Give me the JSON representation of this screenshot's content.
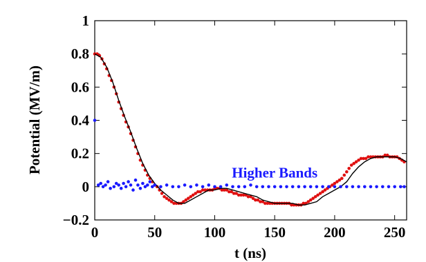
{
  "chart_data": {
    "type": "scatter",
    "xlabel": "t (ns)",
    "ylabel": "Potential (MV/m)",
    "xlim": [
      0,
      260
    ],
    "ylim": [
      -0.2,
      1.0
    ],
    "xticks": [
      0,
      50,
      100,
      150,
      200,
      250
    ],
    "yticks": [
      -0.2,
      0,
      0.2,
      0.4,
      0.6,
      0.8,
      1
    ],
    "ytick_labels": [
      "−0.2",
      "0",
      "0.2",
      "0.4",
      "0.6",
      "0.8",
      "1"
    ],
    "annotation": {
      "text": "Higher Bands",
      "x": 150,
      "y": 0.055,
      "color": "#1a1aff"
    },
    "colors": {
      "red_series": "#e01010",
      "blue_series": "#1a1aff",
      "fit_line": "#000000"
    },
    "series": [
      {
        "style": "points",
        "color": "#e01010",
        "x": [
          0,
          2,
          4,
          6,
          8,
          10,
          12,
          14,
          16,
          18,
          20,
          22,
          24,
          26,
          28,
          30,
          32,
          34,
          36,
          38,
          40,
          42,
          44,
          46,
          48,
          50,
          52,
          54,
          56,
          58,
          60,
          62,
          64,
          66,
          68,
          70,
          72,
          74,
          76,
          78,
          80,
          82,
          84,
          86,
          88,
          90,
          92,
          94,
          96,
          98,
          100,
          102,
          104,
          106,
          108,
          110,
          112,
          114,
          116,
          118,
          120,
          122,
          124,
          126,
          128,
          130,
          132,
          134,
          136,
          138,
          140,
          142,
          144,
          146,
          148,
          150,
          152,
          154,
          156,
          158,
          160,
          162,
          164,
          166,
          168,
          170,
          172,
          174,
          176,
          178,
          180,
          182,
          184,
          186,
          188,
          190,
          192,
          194,
          196,
          198,
          200,
          202,
          204,
          206,
          208,
          210,
          212,
          214,
          216,
          218,
          220,
          222,
          224,
          226,
          228,
          230,
          232,
          234,
          236,
          238,
          240,
          242,
          244,
          246,
          248,
          250,
          252,
          254,
          256,
          258
        ],
        "y": [
          0.8,
          0.8,
          0.79,
          0.77,
          0.74,
          0.71,
          0.67,
          0.64,
          0.6,
          0.56,
          0.51,
          0.47,
          0.43,
          0.39,
          0.36,
          0.32,
          0.28,
          0.24,
          0.2,
          0.16,
          0.13,
          0.1,
          0.07,
          0.05,
          0.03,
          0.01,
          0.0,
          -0.02,
          -0.04,
          -0.06,
          -0.07,
          -0.08,
          -0.09,
          -0.1,
          -0.1,
          -0.1,
          -0.1,
          -0.09,
          -0.08,
          -0.07,
          -0.06,
          -0.05,
          -0.04,
          -0.03,
          -0.03,
          -0.02,
          -0.02,
          -0.02,
          -0.02,
          -0.02,
          -0.01,
          -0.01,
          -0.01,
          -0.02,
          -0.02,
          -0.02,
          -0.03,
          -0.03,
          -0.04,
          -0.04,
          -0.05,
          -0.05,
          -0.05,
          -0.05,
          -0.06,
          -0.06,
          -0.07,
          -0.08,
          -0.08,
          -0.09,
          -0.09,
          -0.1,
          -0.1,
          -0.1,
          -0.1,
          -0.1,
          -0.1,
          -0.1,
          -0.1,
          -0.1,
          -0.1,
          -0.1,
          -0.11,
          -0.11,
          -0.11,
          -0.11,
          -0.11,
          -0.1,
          -0.1,
          -0.09,
          -0.08,
          -0.07,
          -0.06,
          -0.05,
          -0.04,
          -0.03,
          -0.02,
          -0.01,
          0.0,
          0.01,
          0.02,
          0.03,
          0.04,
          0.05,
          0.07,
          0.09,
          0.11,
          0.13,
          0.14,
          0.15,
          0.16,
          0.17,
          0.17,
          0.17,
          0.18,
          0.18,
          0.18,
          0.18,
          0.18,
          0.18,
          0.18,
          0.19,
          0.19,
          0.18,
          0.18,
          0.18,
          0.18,
          0.17,
          0.16,
          0.15
        ]
      },
      {
        "style": "line",
        "color": "#000000",
        "x": [
          0,
          5,
          10,
          15,
          20,
          25,
          30,
          35,
          40,
          45,
          50,
          55,
          60,
          65,
          70,
          75,
          80,
          85,
          90,
          95,
          100,
          105,
          110,
          115,
          120,
          125,
          130,
          135,
          140,
          145,
          150,
          155,
          160,
          165,
          170,
          175,
          180,
          185,
          190,
          195,
          200,
          205,
          210,
          215,
          220,
          225,
          230,
          235,
          240,
          245,
          250,
          255,
          260
        ],
        "y": [
          0.8,
          0.78,
          0.72,
          0.63,
          0.52,
          0.42,
          0.33,
          0.23,
          0.14,
          0.07,
          0.02,
          -0.02,
          -0.05,
          -0.08,
          -0.1,
          -0.1,
          -0.08,
          -0.06,
          -0.04,
          -0.02,
          -0.02,
          -0.01,
          -0.01,
          -0.02,
          -0.03,
          -0.04,
          -0.05,
          -0.06,
          -0.08,
          -0.09,
          -0.1,
          -0.1,
          -0.1,
          -0.1,
          -0.11,
          -0.11,
          -0.1,
          -0.09,
          -0.06,
          -0.04,
          -0.02,
          0.0,
          0.03,
          0.08,
          0.12,
          0.15,
          0.17,
          0.18,
          0.18,
          0.18,
          0.18,
          0.17,
          0.15
        ]
      },
      {
        "style": "points",
        "color": "#1a1aff",
        "x": [
          0,
          3,
          5,
          7,
          9,
          11,
          13,
          16,
          18,
          20,
          22,
          24,
          26,
          28,
          30,
          32,
          34,
          36,
          38,
          40,
          42,
          44,
          46,
          48,
          50,
          55,
          60,
          65,
          70,
          75,
          80,
          85,
          90,
          95,
          100,
          105,
          110,
          115,
          120,
          125,
          130,
          135,
          140,
          145,
          150,
          155,
          160,
          165,
          170,
          175,
          180,
          185,
          190,
          195,
          200,
          205,
          210,
          215,
          220,
          225,
          230,
          235,
          240,
          245,
          250,
          255,
          258
        ],
        "y": [
          0.4,
          0.01,
          0.02,
          0.0,
          0.01,
          0.03,
          -0.01,
          0.0,
          0.02,
          0.01,
          -0.01,
          0.02,
          0.0,
          0.03,
          0.01,
          -0.02,
          0.04,
          0.01,
          -0.01,
          0.02,
          0.0,
          0.01,
          0.03,
          0.0,
          0.01,
          0.0,
          0.01,
          0.0,
          0.0,
          0.01,
          0.0,
          0.01,
          0.0,
          0.01,
          0.0,
          0.0,
          0.01,
          0.0,
          0.0,
          0.0,
          0.01,
          0.0,
          0.0,
          0.0,
          0.0,
          0.0,
          0.0,
          0.0,
          0.0,
          0.0,
          0.0,
          0.0,
          0.0,
          0.0,
          0.0,
          0.0,
          0.0,
          0.0,
          0.0,
          0.0,
          0.0,
          0.0,
          0.0,
          0.0,
          0.0,
          0.0,
          0.0
        ]
      }
    ]
  }
}
